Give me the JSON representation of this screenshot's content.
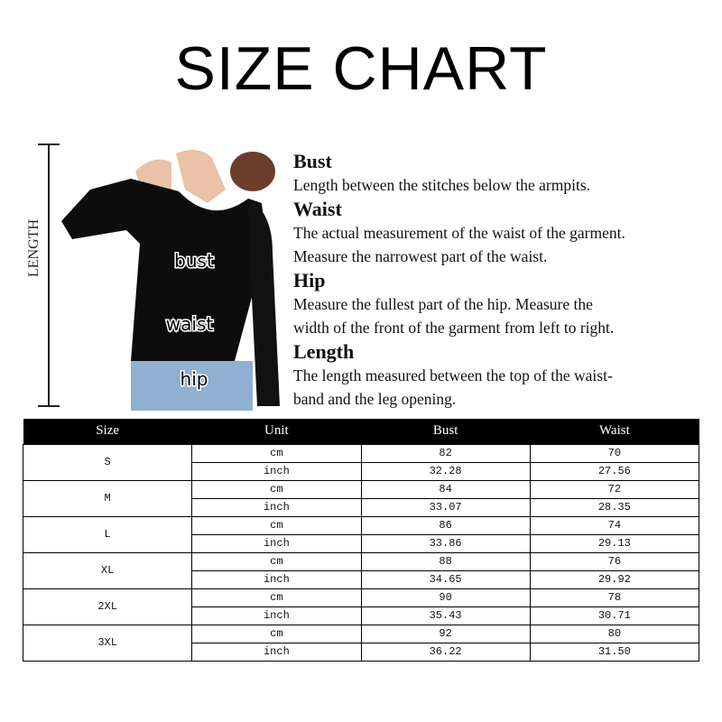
{
  "title": "SIZE CHART",
  "figure": {
    "length_label": "LENGTH",
    "labels": [
      "bust",
      "waist",
      "hip"
    ]
  },
  "descriptions": [
    {
      "heading": "Bust",
      "lines": [
        "Length between the stitches below the armpits."
      ]
    },
    {
      "heading": "Waist",
      "lines": [
        "The actual measurement of the waist of the garment.",
        "Measure the narrowest part of the waist."
      ]
    },
    {
      "heading": "Hip",
      "lines": [
        "Measure the fullest part of the  hip. Measure the",
        "width of the front of the garment from left to right."
      ]
    },
    {
      "heading": "Length",
      "lines": [
        "The length measured between the top of the waist-",
        "band and the leg opening."
      ]
    }
  ],
  "table": {
    "headers": [
      "Size",
      "Unit",
      "Bust",
      "Waist"
    ],
    "rows": [
      {
        "size": "S",
        "cm": {
          "unit": "cm",
          "bust": "82",
          "waist": "70"
        },
        "inch": {
          "unit": "inch",
          "bust": "32.28",
          "waist": "27.56"
        }
      },
      {
        "size": "M",
        "cm": {
          "unit": "cm",
          "bust": "84",
          "waist": "72"
        },
        "inch": {
          "unit": "inch",
          "bust": "33.07",
          "waist": "28.35"
        }
      },
      {
        "size": "L",
        "cm": {
          "unit": "cm",
          "bust": "86",
          "waist": "74"
        },
        "inch": {
          "unit": "inch",
          "bust": "33.86",
          "waist": "29.13"
        }
      },
      {
        "size": "XL",
        "cm": {
          "unit": "cm",
          "bust": "88",
          "waist": "76"
        },
        "inch": {
          "unit": "inch",
          "bust": "34.65",
          "waist": "29.92"
        }
      },
      {
        "size": "2XL",
        "cm": {
          "unit": "cm",
          "bust": "90",
          "waist": "78"
        },
        "inch": {
          "unit": "inch",
          "bust": "35.43",
          "waist": "30.71"
        }
      },
      {
        "size": "3XL",
        "cm": {
          "unit": "cm",
          "bust": "92",
          "waist": "80"
        },
        "inch": {
          "unit": "inch",
          "bust": "36.22",
          "waist": "31.50"
        }
      }
    ]
  }
}
